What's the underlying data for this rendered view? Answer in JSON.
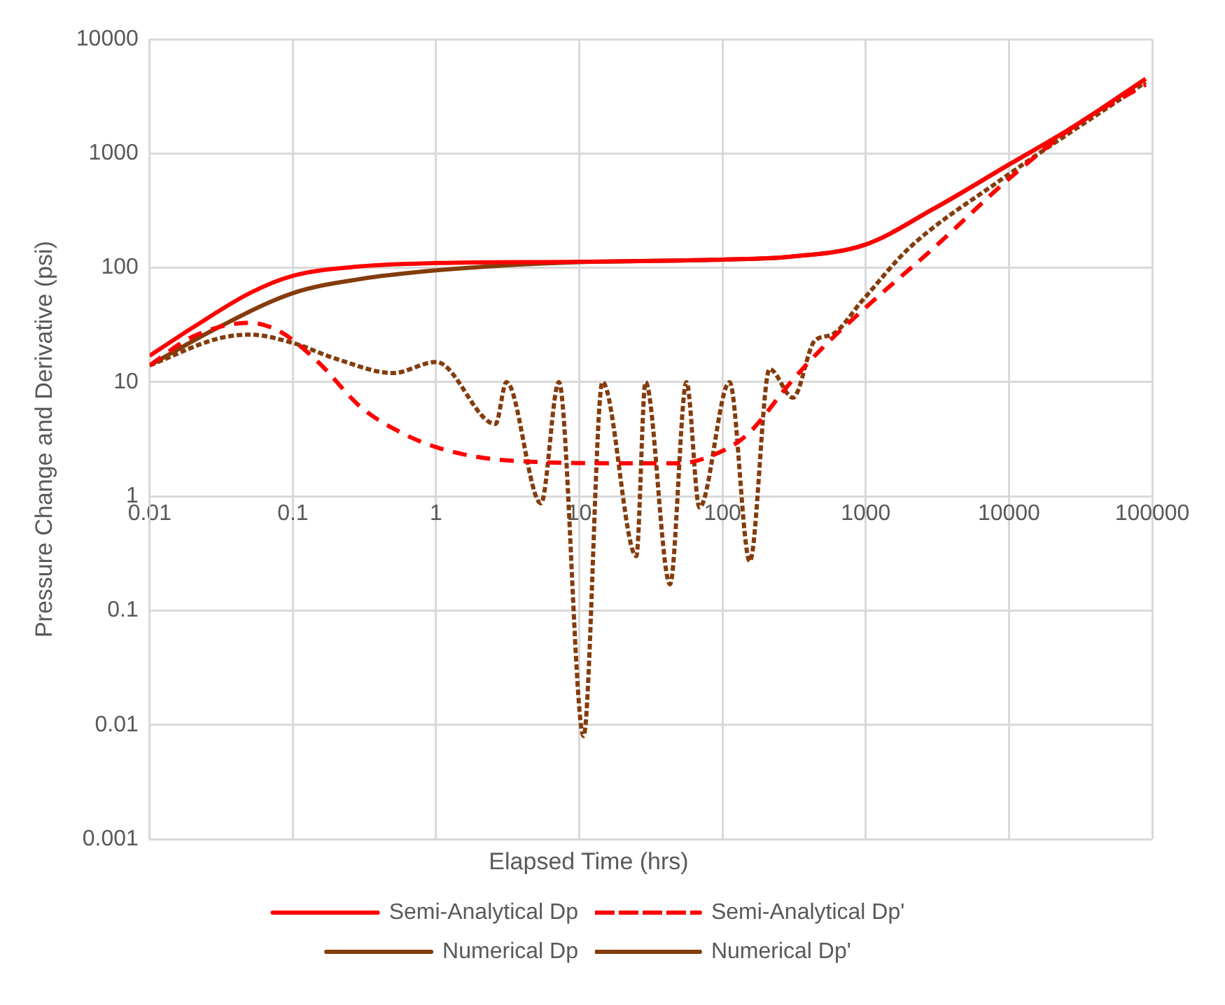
{
  "chart_data": {
    "type": "line",
    "xlabel": "Elapsed Time (hrs)",
    "ylabel": "Pressure Change and Derivative (psi)",
    "log": "xy",
    "xlim": [
      0.01,
      100000
    ],
    "xticks": [
      0.01,
      0.1,
      1,
      10,
      100,
      1000,
      10000,
      100000
    ],
    "ylim": [
      0.001,
      10000
    ],
    "yticks": [
      0.001,
      0.01,
      0.1,
      1,
      10,
      100,
      1000,
      10000
    ],
    "grid": true,
    "legend": "bottom",
    "marker": "none",
    "series": [
      {
        "name": "Semi-Analytical Dp",
        "color": "#ff0000",
        "line_style": "solid",
        "x": [
          0.01,
          0.02,
          0.05,
          0.1,
          0.3,
          1,
          10,
          100,
          300,
          1000,
          3000,
          10000,
          30000,
          90000
        ],
        "values": [
          17,
          30,
          60,
          85,
          103,
          110,
          113,
          118,
          125,
          160,
          330,
          800,
          1800,
          4500
        ]
      },
      {
        "name": "Semi-Analytical Dp'",
        "color": "#ff0000",
        "line_style": "dashed",
        "x": [
          0.01,
          0.02,
          0.05,
          0.08,
          0.15,
          0.3,
          0.6,
          1,
          2,
          5,
          20,
          50,
          100,
          150,
          300,
          500,
          1000,
          3000,
          10000,
          30000,
          90000
        ],
        "values": [
          14,
          25,
          33,
          28,
          15,
          6,
          3.5,
          2.7,
          2.2,
          2,
          1.95,
          1.95,
          2.5,
          3.5,
          10,
          20,
          45,
          150,
          600,
          1800,
          4000
        ]
      },
      {
        "name": "Numerical Dp",
        "color": "#843c0c",
        "line_style": "solid",
        "x": [
          0.01,
          0.03,
          0.1,
          0.3,
          1,
          3,
          10,
          100,
          300,
          1000,
          3000,
          10000,
          30000,
          90000
        ],
        "values": [
          14,
          30,
          60,
          80,
          95,
          105,
          112,
          118,
          125,
          160,
          330,
          800,
          1800,
          4500
        ]
      },
      {
        "name": "Numerical Dp'",
        "color": "#843c0c",
        "line_style": "dotted",
        "x": [
          0.01,
          0.03,
          0.05,
          0.1,
          0.2,
          0.5,
          1,
          2.6,
          3.1,
          5.4,
          7.2,
          10.7,
          14.5,
          25,
          29,
          43,
          56,
          69,
          112,
          155,
          213,
          310,
          440,
          580,
          950,
          2000,
          8300,
          90000
        ],
        "values": [
          14,
          24,
          26,
          22,
          16,
          12,
          15,
          4.3,
          10,
          0.87,
          10,
          0.008,
          10,
          0.3,
          10,
          0.17,
          10,
          0.8,
          10,
          0.27,
          13,
          7.3,
          23,
          26,
          52,
          148,
          560,
          4200
        ]
      }
    ]
  }
}
